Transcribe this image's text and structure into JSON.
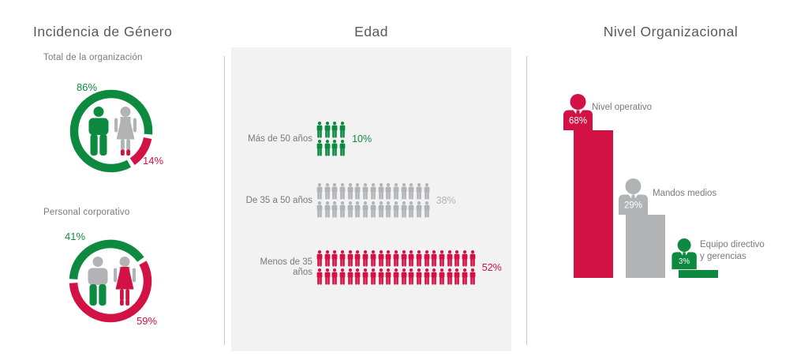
{
  "palette": {
    "green": "#0d8a3f",
    "red": "#d21145",
    "gray": "#b2b3b5",
    "title_text": "#58595b",
    "label_text": "#77797c",
    "panel_bg": "#f2f2f3",
    "divider": "#c9cacc",
    "white": "#ffffff"
  },
  "gender": {
    "title": "Incidencia de Género",
    "donuts": [
      {
        "subtitle": "Total de la organización",
        "start_deg": 98,
        "segments": [
          {
            "name": "mujeres",
            "value": 14,
            "color": "red"
          },
          {
            "name": "hombres",
            "value": 86,
            "color": "green"
          }
        ],
        "labels": {
          "green": "86%",
          "red": "14%"
        },
        "male_colors": {
          "top": "green",
          "legs": "green"
        },
        "female_colors": {
          "top": "gray",
          "dress": "gray",
          "legs": "gray",
          "feet": "red"
        }
      },
      {
        "subtitle": "Personal corporativo",
        "start_deg": 270,
        "segments": [
          {
            "name": "hombres",
            "value": 41,
            "color": "green"
          },
          {
            "name": "mujeres",
            "value": 59,
            "color": "red"
          }
        ],
        "labels": {
          "green": "41%",
          "red": "59%"
        },
        "male_colors": {
          "top": "gray",
          "legs": "green"
        },
        "female_colors": {
          "top": "gray",
          "dress": "red",
          "legs": "red",
          "feet": "red"
        }
      }
    ]
  },
  "edad": {
    "title": "Edad",
    "rows": [
      {
        "label": "Más de 50 años",
        "pct": "10%",
        "value": 10,
        "color": "green",
        "icons_per_row": 4,
        "icon_rows": 2,
        "icons_total": 8
      },
      {
        "label": "De 35 a 50 años",
        "pct": "38%",
        "value": 38,
        "color": "gray",
        "icons_per_row": 15,
        "icon_rows": 2,
        "icons_total": 30
      },
      {
        "label": "Menos de 35 años",
        "pct": "52%",
        "value": 52,
        "color": "red",
        "icons_per_row": 21,
        "icon_rows": 2,
        "icons_total": 42
      }
    ]
  },
  "nivel": {
    "title": "Nivel Organizacional",
    "bars": [
      {
        "label_lines": [
          "Nivel operativo"
        ],
        "pct": "68%",
        "value": 68,
        "color": "red"
      },
      {
        "label_lines": [
          "Mandos medios"
        ],
        "pct": "29%",
        "value": 29,
        "color": "gray"
      },
      {
        "label_lines": [
          "Equipo directivo",
          "y gerencias"
        ],
        "pct": "3%",
        "value": 3,
        "color": "green"
      }
    ]
  },
  "chart_data": [
    {
      "type": "pie",
      "title": "Incidencia de Género — Total de la organización",
      "labels": [
        "Hombres",
        "Mujeres"
      ],
      "values": [
        86,
        14
      ],
      "unit": "%",
      "colors": [
        "#0d8a3f",
        "#d21145"
      ],
      "style": "donut-ring with male/female pictograms inside"
    },
    {
      "type": "pie",
      "title": "Incidencia de Género — Personal corporativo",
      "labels": [
        "Hombres",
        "Mujeres"
      ],
      "values": [
        41,
        59
      ],
      "unit": "%",
      "colors": [
        "#0d8a3f",
        "#d21145"
      ],
      "style": "donut-ring with male/female pictograms inside"
    },
    {
      "type": "pictogram",
      "title": "Edad",
      "categories": [
        "Más de 50 años",
        "De 35 a 50 años",
        "Menos de 35 años"
      ],
      "values": [
        10,
        38,
        52
      ],
      "unit": "%",
      "icon_counts": [
        8,
        30,
        42
      ],
      "colors": [
        "#0d8a3f",
        "#b2b3b5",
        "#d21145"
      ]
    },
    {
      "type": "bar",
      "title": "Nivel Organizacional",
      "categories": [
        "Nivel operativo",
        "Mandos medios",
        "Equipo directivo y gerencias"
      ],
      "values": [
        68,
        29,
        3
      ],
      "unit": "%",
      "colors": [
        "#d21145",
        "#b2b3b5",
        "#0d8a3f"
      ],
      "ylim": [
        0,
        100
      ],
      "grid": false,
      "legend": "none"
    }
  ]
}
